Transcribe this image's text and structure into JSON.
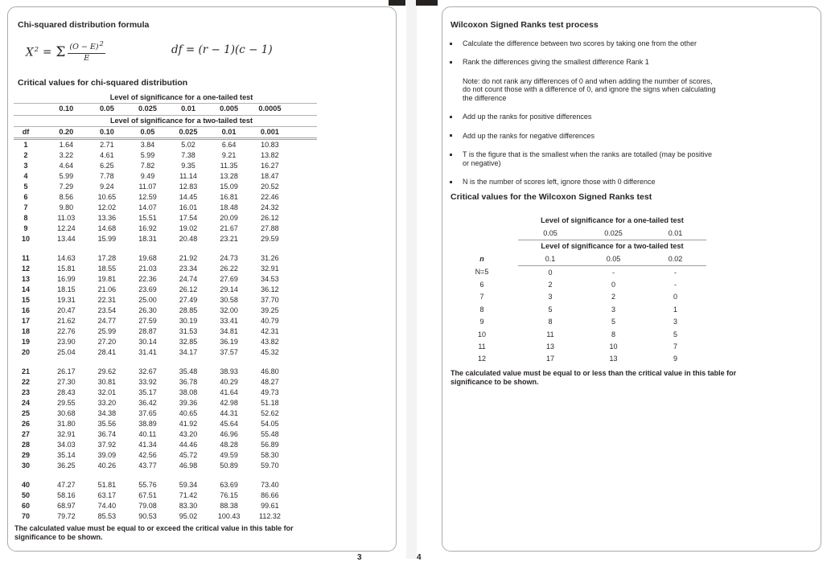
{
  "pages": {
    "left": {
      "page_number": "3",
      "headings": {
        "formula": "Chi-squared distribution formula",
        "critical_values": "Critical values for chi-squared distribution"
      },
      "formula": {
        "variable": "X",
        "variable_exponent": "2",
        "equals": "=",
        "sigma": "Σ",
        "fraction_numerator": "(O − E)",
        "fraction_numerator_exponent": "2",
        "fraction_denominator": "E",
        "df_formula": "df = (r − 1)(c − 1)"
      },
      "table": {
        "one_tailed_label": "Level of significance for a one-tailed test",
        "one_tailed_levels": [
          "0.10",
          "0.05",
          "0.025",
          "0.01",
          "0.005",
          "0.0005"
        ],
        "two_tailed_label": "Level of significance for a two-tailed test",
        "df_header": "df",
        "two_tailed_levels": [
          "0.20",
          "0.10",
          "0.05",
          "0.025",
          "0.01",
          "0.001"
        ],
        "row_groups": [
          [
            [
              "1",
              "1.64",
              "2.71",
              "3.84",
              "5.02",
              "6.64",
              "10.83"
            ],
            [
              "2",
              "3.22",
              "4.61",
              "5.99",
              "7.38",
              "9.21",
              "13.82"
            ],
            [
              "3",
              "4.64",
              "6.25",
              "7.82",
              "9.35",
              "11.35",
              "16.27"
            ],
            [
              "4",
              "5.99",
              "7.78",
              "9.49",
              "11.14",
              "13.28",
              "18.47"
            ],
            [
              "5",
              "7.29",
              "9.24",
              "11.07",
              "12.83",
              "15.09",
              "20.52"
            ],
            [
              "6",
              "8.56",
              "10.65",
              "12.59",
              "14.45",
              "16.81",
              "22.46"
            ],
            [
              "7",
              "9.80",
              "12.02",
              "14.07",
              "16.01",
              "18.48",
              "24.32"
            ],
            [
              "8",
              "11.03",
              "13.36",
              "15.51",
              "17.54",
              "20.09",
              "26.12"
            ],
            [
              "9",
              "12.24",
              "14.68",
              "16.92",
              "19.02",
              "21.67",
              "27.88"
            ],
            [
              "10",
              "13.44",
              "15.99",
              "18.31",
              "20.48",
              "23.21",
              "29.59"
            ]
          ],
          [
            [
              "11",
              "14.63",
              "17.28",
              "19.68",
              "21.92",
              "24.73",
              "31.26"
            ],
            [
              "12",
              "15.81",
              "18.55",
              "21.03",
              "23.34",
              "26.22",
              "32.91"
            ],
            [
              "13",
              "16.99",
              "19.81",
              "22.36",
              "24.74",
              "27.69",
              "34.53"
            ],
            [
              "14",
              "18.15",
              "21.06",
              "23.69",
              "26.12",
              "29.14",
              "36.12"
            ],
            [
              "15",
              "19.31",
              "22.31",
              "25.00",
              "27.49",
              "30.58",
              "37.70"
            ],
            [
              "16",
              "20.47",
              "23.54",
              "26.30",
              "28.85",
              "32.00",
              "39.25"
            ],
            [
              "17",
              "21.62",
              "24.77",
              "27.59",
              "30.19",
              "33.41",
              "40.79"
            ],
            [
              "18",
              "22.76",
              "25.99",
              "28.87",
              "31.53",
              "34.81",
              "42.31"
            ],
            [
              "19",
              "23.90",
              "27.20",
              "30.14",
              "32.85",
              "36.19",
              "43.82"
            ],
            [
              "20",
              "25.04",
              "28.41",
              "31.41",
              "34.17",
              "37.57",
              "45.32"
            ]
          ],
          [
            [
              "21",
              "26.17",
              "29.62",
              "32.67",
              "35.48",
              "38.93",
              "46.80"
            ],
            [
              "22",
              "27.30",
              "30.81",
              "33.92",
              "36.78",
              "40.29",
              "48.27"
            ],
            [
              "23",
              "28.43",
              "32.01",
              "35.17",
              "38.08",
              "41.64",
              "49.73"
            ],
            [
              "24",
              "29.55",
              "33.20",
              "36.42",
              "39.36",
              "42.98",
              "51.18"
            ],
            [
              "25",
              "30.68",
              "34.38",
              "37.65",
              "40.65",
              "44.31",
              "52.62"
            ],
            [
              "26",
              "31.80",
              "35.56",
              "38.89",
              "41.92",
              "45.64",
              "54.05"
            ],
            [
              "27",
              "32.91",
              "36.74",
              "40.11",
              "43.20",
              "46.96",
              "55.48"
            ],
            [
              "28",
              "34.03",
              "37.92",
              "41.34",
              "44.46",
              "48.28",
              "56.89"
            ],
            [
              "29",
              "35.14",
              "39.09",
              "42.56",
              "45.72",
              "49.59",
              "58.30"
            ],
            [
              "30",
              "36.25",
              "40.26",
              "43.77",
              "46.98",
              "50.89",
              "59.70"
            ]
          ],
          [
            [
              "40",
              "47.27",
              "51.81",
              "55.76",
              "59.34",
              "63.69",
              "73.40"
            ],
            [
              "50",
              "58.16",
              "63.17",
              "67.51",
              "71.42",
              "76.15",
              "86.66"
            ],
            [
              "60",
              "68.97",
              "74.40",
              "79.08",
              "83.30",
              "88.38",
              "99.61"
            ],
            [
              "70",
              "79.72",
              "85.53",
              "90.53",
              "95.02",
              "100.43",
              "112.32"
            ]
          ]
        ]
      },
      "footnote": "The calculated value must be equal to or exceed the critical value in this table for\nsignificance to be shown."
    },
    "right": {
      "page_number": "4",
      "headings": {
        "process": "Wilcoxon Signed Ranks test process",
        "critical_values": "Critical values for the Wilcoxon Signed Ranks test"
      },
      "process_items": [
        {
          "bullet": true,
          "text": "Calculate the difference between two scores by taking one from the other"
        },
        {
          "bullet": true,
          "text": "Rank the differences giving the smallest difference Rank 1"
        },
        {
          "bullet": false,
          "text": "Note: do not rank any differences of 0 and when adding the number of scores,\ndo not count those with a difference of 0, and ignore the signs when calculating\nthe difference"
        },
        {
          "bullet": true,
          "text": "Add up the ranks for positive differences"
        },
        {
          "bullet": true,
          "text": "Add up the ranks for negative differences"
        },
        {
          "bullet": true,
          "text": "T is the figure that is the smallest when the ranks are totalled (may be positive\nor negative)"
        },
        {
          "bullet": true,
          "text": "N is the number of scores left, ignore those with 0 difference"
        }
      ],
      "table": {
        "one_tailed_label": "Level of significance for a one-tailed test",
        "one_tailed_levels": [
          "0.05",
          "0.025",
          "0.01"
        ],
        "two_tailed_label": "Level of significance for a two-tailed test",
        "n_header": "n",
        "two_tailed_levels": [
          "0.1",
          "0.05",
          "0.02"
        ],
        "rows": [
          [
            "N=5",
            "0",
            "-",
            "-"
          ],
          [
            "6",
            "2",
            "0",
            "-"
          ],
          [
            "7",
            "3",
            "2",
            "0"
          ],
          [
            "8",
            "5",
            "3",
            "1"
          ],
          [
            "9",
            "8",
            "5",
            "3"
          ],
          [
            "10",
            "11",
            "8",
            "5"
          ],
          [
            "11",
            "13",
            "10",
            "7"
          ],
          [
            "12",
            "17",
            "13",
            "9"
          ]
        ]
      },
      "footnote": "The calculated value must be equal to or less than the critical value in this table for\nsignificance to be shown."
    }
  }
}
